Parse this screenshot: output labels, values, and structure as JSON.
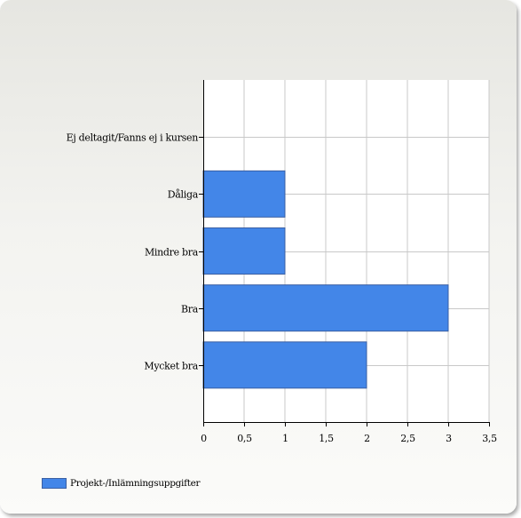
{
  "chart_data": {
    "type": "bar",
    "orientation": "horizontal",
    "categories": [
      "Ej deltagit/Fanns ej i kursen",
      "Dåliga",
      "Mindre bra",
      "Bra",
      "Mycket bra"
    ],
    "series": [
      {
        "name": "Projekt-/Inlämningsuppgifter",
        "values": [
          0,
          1,
          1,
          3,
          2
        ],
        "color": "#4386e8"
      }
    ],
    "xticks": [
      "0",
      "0,5",
      "1",
      "1,5",
      "2",
      "2,5",
      "3",
      "3,5"
    ],
    "xlim": [
      0,
      3.5
    ],
    "grid": true,
    "legend_position": "bottom-left",
    "title": "",
    "xlabel": "",
    "ylabel": ""
  },
  "legend": {
    "label": "Projekt-/Inlämningsuppgifter"
  }
}
